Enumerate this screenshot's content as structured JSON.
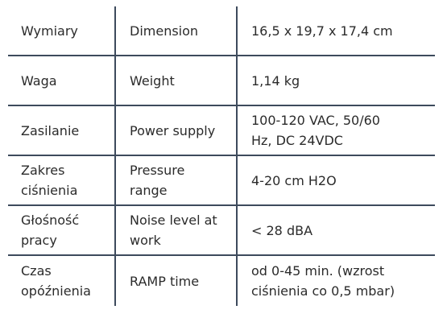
{
  "table": {
    "rows": [
      [
        [
          "Wymiary"
        ],
        [
          "Dimension"
        ],
        [
          "16,5 x 19,7 x 17,4 cm"
        ]
      ],
      [
        [
          "Waga"
        ],
        [
          "Weight"
        ],
        [
          "1,14 kg"
        ]
      ],
      [
        [
          "Zasilanie"
        ],
        [
          "Power supply"
        ],
        [
          "100-120 VAC, 50/60",
          "Hz, DC 24VDC"
        ]
      ],
      [
        [
          "Zakres",
          "ciśnienia"
        ],
        [
          "Pressure",
          "range"
        ],
        [
          "4-20 cm H2O"
        ]
      ],
      [
        [
          "Głośność",
          "pracy"
        ],
        [
          "Noise level at",
          "work"
        ],
        [
          "< 28 dBA"
        ]
      ],
      [
        [
          "Czas",
          "opóźnienia"
        ],
        [
          "RAMP time"
        ],
        [
          "od 0-45 min. (wzrost",
          "ciśnienia co 0,5 mbar)"
        ]
      ]
    ]
  }
}
